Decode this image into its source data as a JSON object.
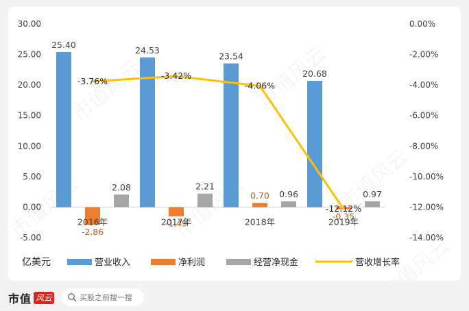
{
  "chart_data": {
    "type": "bar",
    "categories": [
      "2016年",
      "2017年",
      "2018年",
      "2019年"
    ],
    "y_unit_label": "亿美元",
    "ylim_left": [
      -5,
      30
    ],
    "yticks_left": [
      "30.00",
      "25.00",
      "20.00",
      "15.00",
      "10.00",
      "5.00",
      "0.00",
      "-5.00"
    ],
    "ylim_right": [
      -14,
      0
    ],
    "yticks_right": [
      "0.00%",
      "-2.00%",
      "-4.00%",
      "-6.00%",
      "-8.00%",
      "-10.00%",
      "-12.00%",
      "-14.00%"
    ],
    "series": [
      {
        "name": "营业收入",
        "kind": "bar",
        "axis": "left",
        "color": "#5b9bd5",
        "values": [
          25.4,
          24.53,
          23.54,
          20.68
        ],
        "labels": [
          "25.40",
          "24.53",
          "23.54",
          "20.68"
        ]
      },
      {
        "name": "净利润",
        "kind": "bar",
        "axis": "left",
        "color": "#ed7d31",
        "label_color": "#c55a11",
        "values": [
          -2.86,
          -1.49,
          0.7,
          -0.35
        ],
        "labels": [
          "-2.86",
          "-1.49",
          "0.70",
          "-0.35"
        ]
      },
      {
        "name": "经营净现金",
        "kind": "bar",
        "axis": "left",
        "color": "#a5a5a5",
        "values": [
          2.08,
          2.21,
          0.96,
          0.97
        ],
        "labels": [
          "2.08",
          "2.21",
          "0.96",
          "0.97"
        ]
      },
      {
        "name": "营收增长率",
        "kind": "line",
        "axis": "right",
        "color": "#ffc000",
        "values": [
          -3.76,
          -3.42,
          -4.06,
          -12.12
        ],
        "labels": [
          "-3.76%",
          "-3.42%",
          "-4.06%",
          "-12.12%"
        ]
      }
    ],
    "legend_position": "bottom",
    "grid": false
  },
  "watermark": "市值风云",
  "footer": {
    "brand": "市值",
    "brand_badge": "风云",
    "search_placeholder": "买股之前搜一搜",
    "search_icon": "search-icon"
  }
}
